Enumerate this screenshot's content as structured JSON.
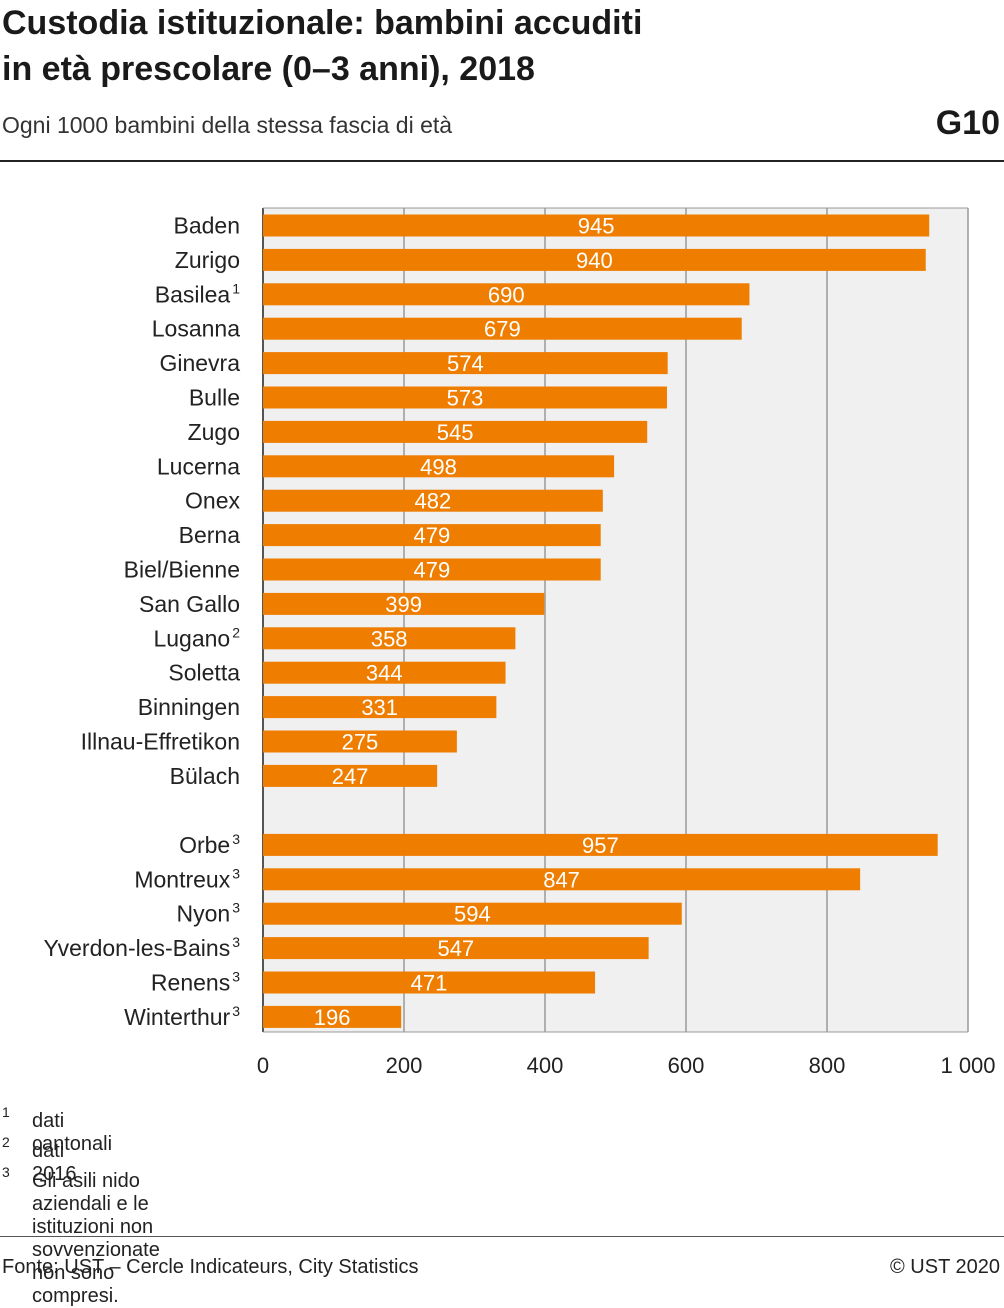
{
  "header": {
    "title_line1": "Custodia istituzionale: bambini accuditi",
    "title_line2": "in età prescolare (0–3 anni), 2018",
    "subtitle": "Ogni 1000 bambini della stessa fascia di età",
    "code": "G10"
  },
  "chart_data": {
    "type": "bar",
    "orientation": "horizontal",
    "title": "Custodia istituzionale: bambini accuditi in età prescolare (0–3 anni), 2018",
    "subtitle": "Ogni 1000 bambini della stessa fascia di età",
    "xlim": [
      0,
      1000
    ],
    "x_ticks": [
      "0",
      "200",
      "400",
      "600",
      "800",
      "1 000"
    ],
    "grid": "vertical",
    "bar_color": "#ee7d00",
    "plot_background": "#f0f0f0",
    "groups": [
      {
        "categories": [
          {
            "label": "Baden",
            "sup": ""
          },
          {
            "label": "Zurigo",
            "sup": ""
          },
          {
            "label": "Basilea",
            "sup": "1"
          },
          {
            "label": "Losanna",
            "sup": ""
          },
          {
            "label": "Ginevra",
            "sup": ""
          },
          {
            "label": "Bulle",
            "sup": ""
          },
          {
            "label": "Zugo",
            "sup": ""
          },
          {
            "label": "Lucerna",
            "sup": ""
          },
          {
            "label": "Onex",
            "sup": ""
          },
          {
            "label": "Berna",
            "sup": ""
          },
          {
            "label": "Biel/Bienne",
            "sup": ""
          },
          {
            "label": "San Gallo",
            "sup": ""
          },
          {
            "label": "Lugano",
            "sup": "2"
          },
          {
            "label": "Soletta",
            "sup": ""
          },
          {
            "label": "Binningen",
            "sup": ""
          },
          {
            "label": "Illnau-Effretikon",
            "sup": ""
          },
          {
            "label": "Bülach",
            "sup": ""
          }
        ],
        "values": [
          945,
          940,
          690,
          679,
          574,
          573,
          545,
          498,
          482,
          479,
          479,
          399,
          358,
          344,
          331,
          275,
          247
        ]
      },
      {
        "categories": [
          {
            "label": "Orbe",
            "sup": "3"
          },
          {
            "label": "Montreux",
            "sup": "3"
          },
          {
            "label": "Nyon",
            "sup": "3"
          },
          {
            "label": "Yverdon-les-Bains",
            "sup": "3"
          },
          {
            "label": "Renens",
            "sup": "3"
          },
          {
            "label": "Winterthur",
            "sup": "3"
          }
        ],
        "values": [
          957,
          847,
          594,
          547,
          471,
          196
        ]
      }
    ]
  },
  "footnotes": [
    {
      "mark": "1",
      "text": "dati cantonali"
    },
    {
      "mark": "2",
      "text": "dati 2016"
    },
    {
      "mark": "3",
      "text": "Gli asili nido aziendali e le istituzioni non sovvenzionate non sono compresi."
    }
  ],
  "footer": {
    "source": "Fonte: UST – Cercle Indicateurs, City Statistics",
    "copyright": "© UST 2020"
  }
}
